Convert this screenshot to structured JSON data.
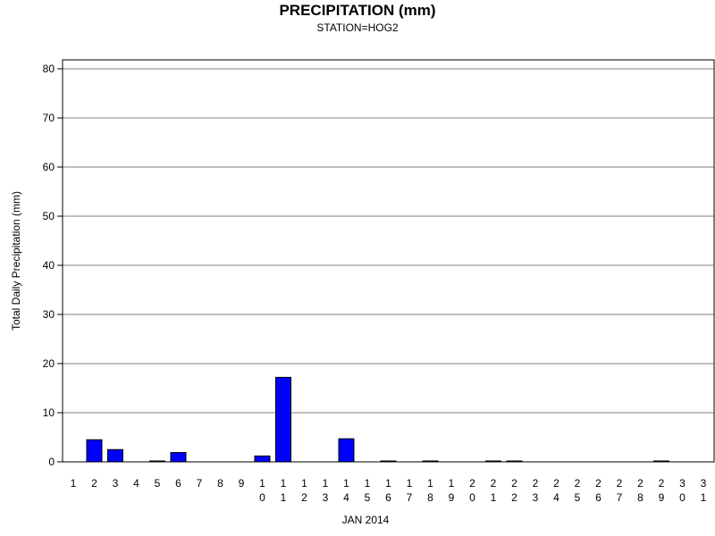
{
  "chart_data": {
    "type": "bar",
    "title": "PRECIPITATION (mm)",
    "subtitle": "STATION=HOG2",
    "xlabel": "JAN 2014",
    "ylabel": "Total Daily Precipitation (mm)",
    "ylim": [
      0,
      80
    ],
    "yticks": [
      0,
      10,
      20,
      30,
      40,
      50,
      60,
      70,
      80
    ],
    "grid": true,
    "bar_color": "#0000ff",
    "categories": [
      "1",
      "2",
      "3",
      "4",
      "5",
      "6",
      "7",
      "8",
      "9",
      "10",
      "11",
      "12",
      "13",
      "14",
      "15",
      "16",
      "17",
      "18",
      "19",
      "20",
      "21",
      "22",
      "23",
      "24",
      "25",
      "26",
      "27",
      "28",
      "29",
      "30",
      "31"
    ],
    "values": [
      0,
      4.5,
      2.5,
      0,
      0.1,
      1.9,
      0,
      0,
      0,
      1.2,
      17.2,
      0,
      0,
      4.7,
      0,
      0.1,
      0,
      0.1,
      0,
      0,
      0.1,
      0.1,
      0,
      0,
      0,
      0,
      0,
      0,
      0.1,
      0,
      0
    ]
  }
}
